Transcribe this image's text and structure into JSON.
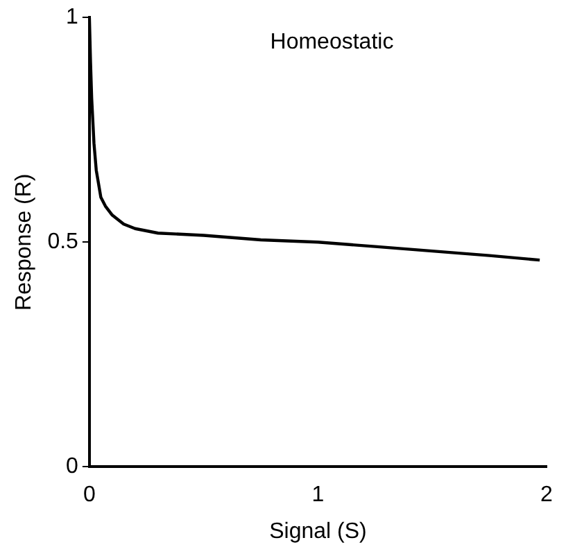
{
  "chart_data": {
    "type": "line",
    "annotations": [
      "Homeostatic"
    ],
    "xlabel": "Signal (S)",
    "ylabel": "Response (R)",
    "x": [
      0,
      0.005,
      0.01,
      0.02,
      0.03,
      0.05,
      0.07,
      0.1,
      0.15,
      0.2,
      0.3,
      0.5,
      0.75,
      1,
      1.25,
      1.5,
      1.75,
      1.97
    ],
    "series": [
      {
        "color": "#000000",
        "values": [
          1,
          0.9,
          0.82,
          0.72,
          0.66,
          0.6,
          0.58,
          0.56,
          0.54,
          0.53,
          0.52,
          0.515,
          0.505,
          0.5,
          0.49,
          0.48,
          0.47,
          0.46
        ]
      }
    ],
    "xlim": [
      0,
      2
    ],
    "ylim": [
      0,
      1
    ],
    "xticks": [
      0,
      1,
      2
    ],
    "yticks": [
      0,
      0.5,
      1
    ],
    "grid": false,
    "marker": "none",
    "line_style": "solid"
  }
}
